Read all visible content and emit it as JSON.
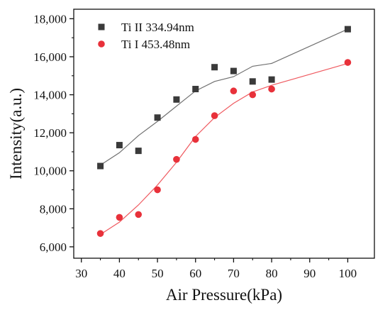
{
  "chart_data": {
    "type": "scatter",
    "title": "",
    "xlabel": "Air Pressure(kPa)",
    "ylabel": "Intensity(a.u.)",
    "xlim": [
      28,
      107
    ],
    "ylim": [
      5400,
      18500
    ],
    "x_ticks": [
      "30",
      "40",
      "50",
      "60",
      "70",
      "80",
      "90",
      "100"
    ],
    "y_ticks": [
      "6,000",
      "8,000",
      "10,000",
      "12,000",
      "14,000",
      "16,000",
      "18,000"
    ],
    "grid": false,
    "legend_position": "top-left",
    "series": [
      {
        "name": "Ti II 334.94nm",
        "marker": "square",
        "color": "#3a3a3a",
        "line_color": "#707070",
        "points": [
          {
            "x": 35,
            "y": 10250
          },
          {
            "x": 40,
            "y": 11350
          },
          {
            "x": 45,
            "y": 11050
          },
          {
            "x": 50,
            "y": 12800
          },
          {
            "x": 55,
            "y": 13750
          },
          {
            "x": 60,
            "y": 14300
          },
          {
            "x": 65,
            "y": 15450
          },
          {
            "x": 70,
            "y": 15250
          },
          {
            "x": 75,
            "y": 14700
          },
          {
            "x": 80,
            "y": 14800
          },
          {
            "x": 100,
            "y": 17450
          }
        ],
        "fit": [
          {
            "x": 35,
            "y": 10300
          },
          {
            "x": 40,
            "y": 10950
          },
          {
            "x": 45,
            "y": 11850
          },
          {
            "x": 50,
            "y": 12600
          },
          {
            "x": 55,
            "y": 13400
          },
          {
            "x": 60,
            "y": 14200
          },
          {
            "x": 65,
            "y": 14700
          },
          {
            "x": 70,
            "y": 14950
          },
          {
            "x": 75,
            "y": 15500
          },
          {
            "x": 80,
            "y": 15650
          },
          {
            "x": 100,
            "y": 17450
          }
        ]
      },
      {
        "name": "Ti I 453.48nm",
        "marker": "circle",
        "color": "#e8313a",
        "line_color": "#ef5a60",
        "points": [
          {
            "x": 35,
            "y": 6700
          },
          {
            "x": 40,
            "y": 7550
          },
          {
            "x": 45,
            "y": 7700
          },
          {
            "x": 50,
            "y": 9000
          },
          {
            "x": 55,
            "y": 10600
          },
          {
            "x": 60,
            "y": 11650
          },
          {
            "x": 65,
            "y": 12900
          },
          {
            "x": 70,
            "y": 14200
          },
          {
            "x": 75,
            "y": 14000
          },
          {
            "x": 80,
            "y": 14300
          },
          {
            "x": 100,
            "y": 15700
          }
        ],
        "fit": [
          {
            "x": 35,
            "y": 6650
          },
          {
            "x": 40,
            "y": 7300
          },
          {
            "x": 45,
            "y": 8200
          },
          {
            "x": 50,
            "y": 9250
          },
          {
            "x": 55,
            "y": 10450
          },
          {
            "x": 60,
            "y": 11800
          },
          {
            "x": 65,
            "y": 12800
          },
          {
            "x": 70,
            "y": 13550
          },
          {
            "x": 75,
            "y": 14150
          },
          {
            "x": 80,
            "y": 14500
          },
          {
            "x": 100,
            "y": 15650
          }
        ]
      }
    ]
  }
}
